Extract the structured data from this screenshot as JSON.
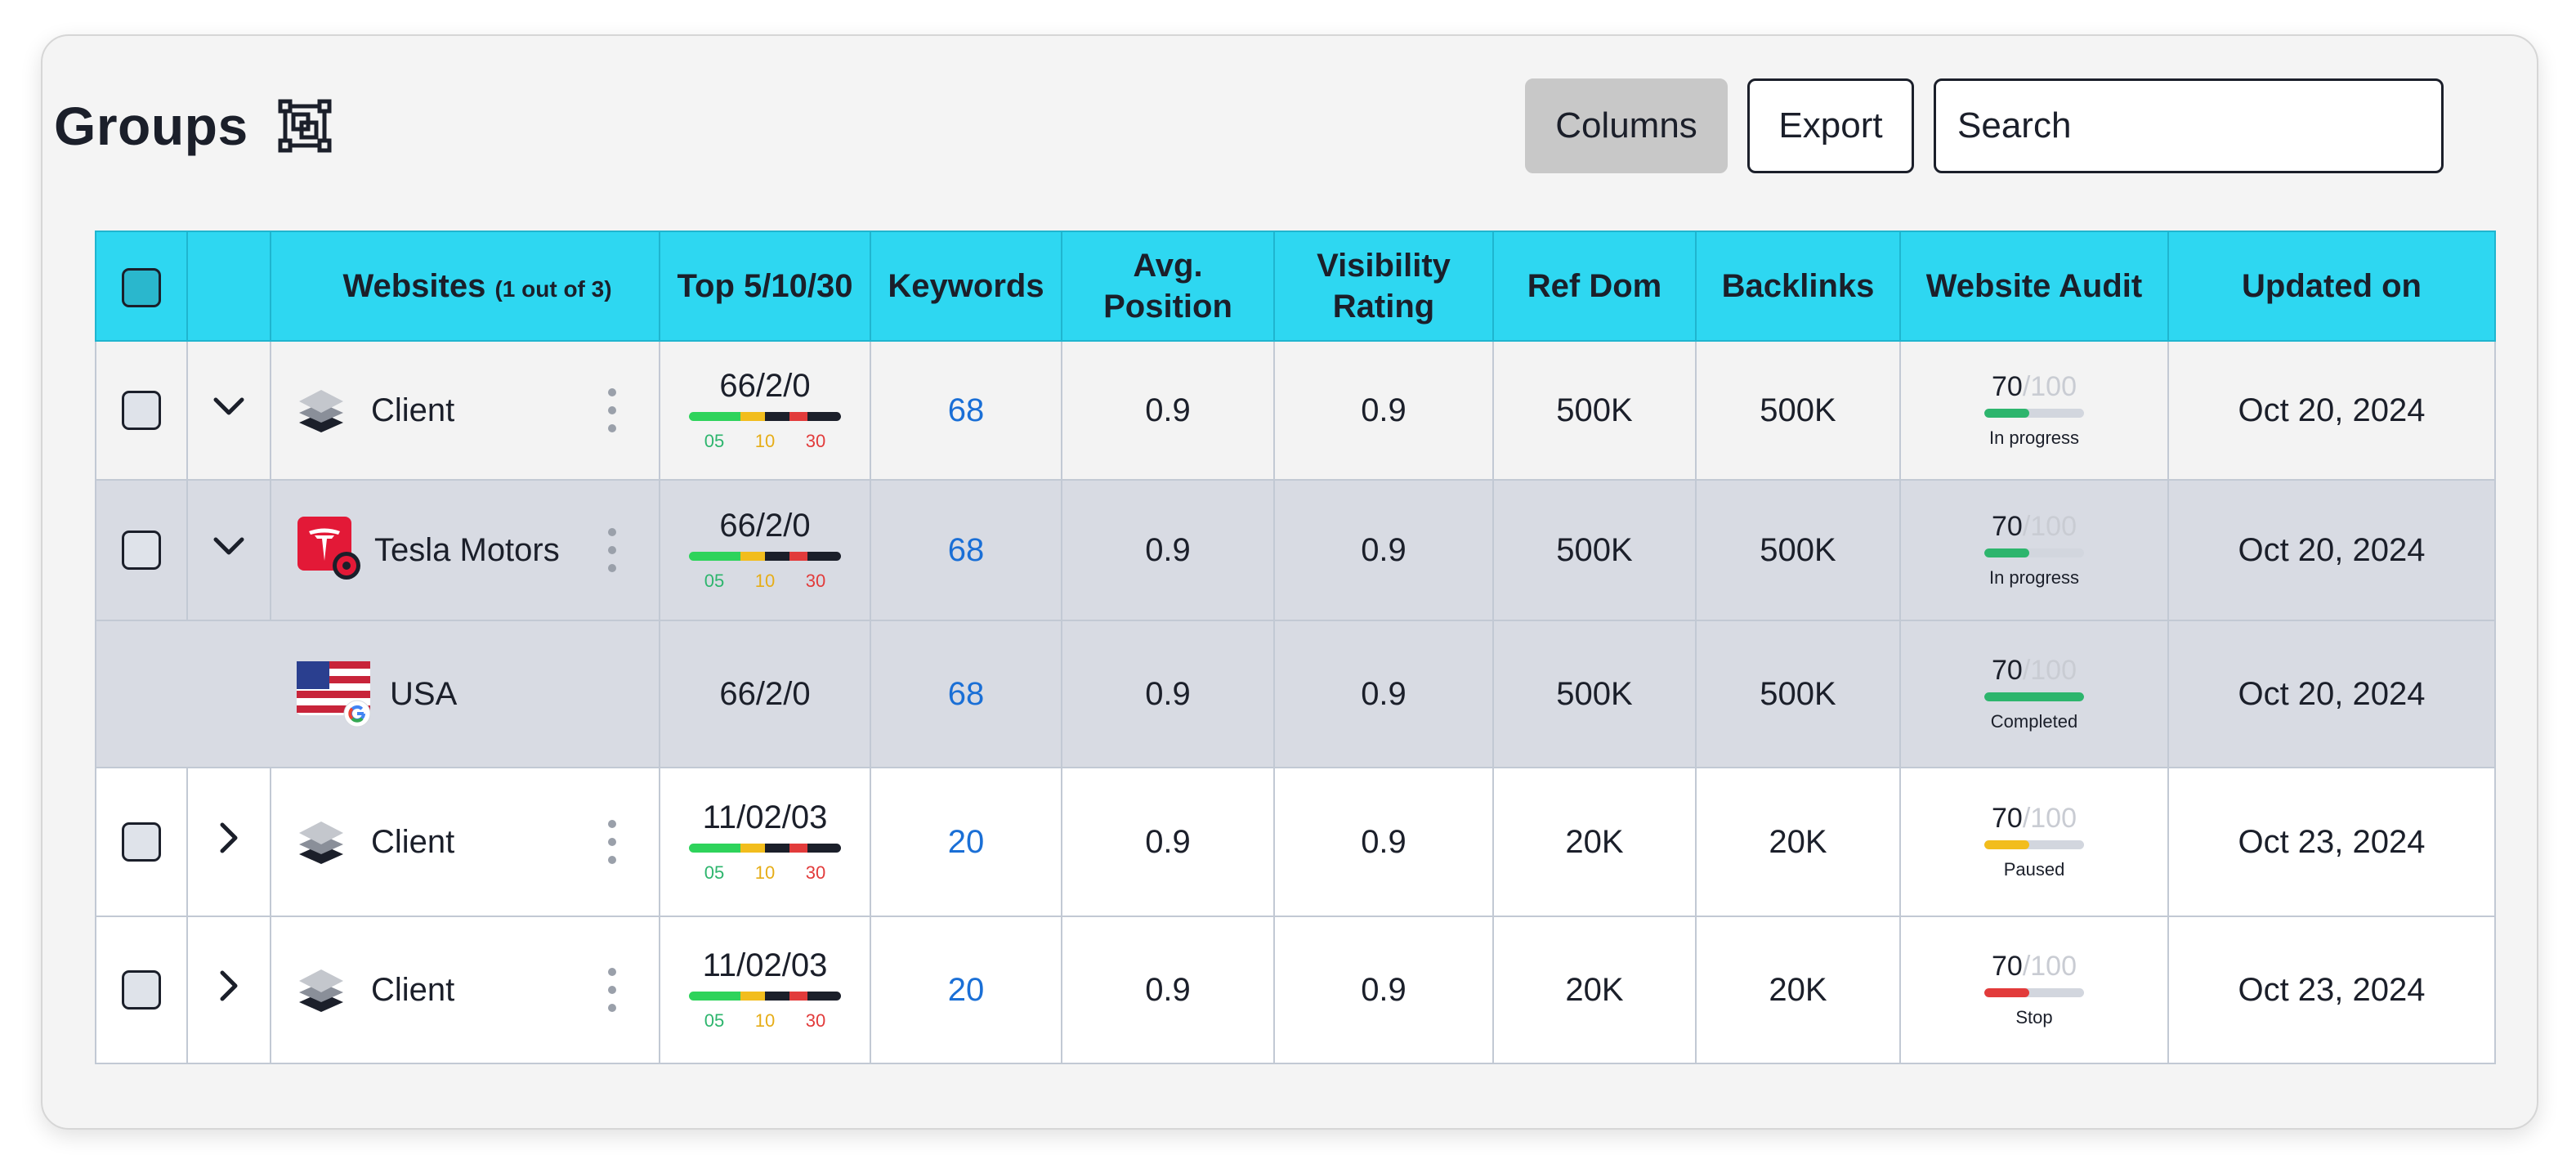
{
  "page": {
    "title": "Groups",
    "buttons": {
      "columns": "Columns",
      "export": "Export"
    },
    "search": {
      "placeholder": "Search",
      "value": ""
    }
  },
  "table": {
    "headers": {
      "websites": "Websites",
      "websites_count": "(1 out of 3)",
      "top": "Top 5/10/30",
      "keywords": "Keywords",
      "avg_position_1": "Avg.",
      "avg_position_2": "Position",
      "visibility_1": "Visibility",
      "visibility_2": "Rating",
      "ref_dom": "Ref Dom",
      "backlinks": "Backlinks",
      "website_audit": "Website Audit",
      "updated_on": "Updated on"
    },
    "top_bar_labels": [
      "05",
      "10",
      "30"
    ],
    "audit_max": "/100",
    "rows": [
      {
        "name": "Client",
        "icon": "layers-icon",
        "expanded": true,
        "top": "66/2/0",
        "keywords": "68",
        "avg_position": "0.9",
        "visibility": "0.9",
        "ref_dom": "500K",
        "backlinks": "500K",
        "audit_score": "70",
        "audit_status": "In progress",
        "audit_progress": 0.45,
        "audit_color": "#2db56d",
        "updated": "Oct 20, 2024"
      },
      {
        "name": "Tesla Motors",
        "icon": "tesla-logo-icon",
        "expanded": true,
        "top": "66/2/0",
        "keywords": "68",
        "avg_position": "0.9",
        "visibility": "0.9",
        "ref_dom": "500K",
        "backlinks": "500K",
        "audit_score": "70",
        "audit_status": "In progress",
        "audit_progress": 0.45,
        "audit_color": "#2db56d",
        "updated": "Oct 20, 2024"
      },
      {
        "name": "USA",
        "icon": "usa-flag-icon",
        "top": "66/2/0",
        "keywords": "68",
        "avg_position": "0.9",
        "visibility": "0.9",
        "ref_dom": "500K",
        "backlinks": "500K",
        "audit_score": "70",
        "audit_status": "Completed",
        "audit_progress": 1.0,
        "audit_color": "#2db56d",
        "updated": "Oct 20, 2024"
      },
      {
        "name": "Client",
        "icon": "layers-icon",
        "expanded": false,
        "top": "11/02/03",
        "keywords": "20",
        "avg_position": "0.9",
        "visibility": "0.9",
        "ref_dom": "20K",
        "backlinks": "20K",
        "audit_score": "70",
        "audit_status": "Paused",
        "audit_progress": 0.45,
        "audit_color": "#f2bd1d",
        "updated": "Oct 23, 2024"
      },
      {
        "name": "Client",
        "icon": "layers-icon",
        "expanded": false,
        "top": "11/02/03",
        "keywords": "20",
        "avg_position": "0.9",
        "visibility": "0.9",
        "ref_dom": "20K",
        "backlinks": "20K",
        "audit_score": "70",
        "audit_status": "Stop",
        "audit_progress": 0.45,
        "audit_color": "#e23b3b",
        "updated": "Oct 23, 2024"
      }
    ]
  },
  "colors": {
    "header_bg": "#2ed7f1",
    "link_blue": "#1a6fd6",
    "bar_green": "#2db56d",
    "bar_yellow": "#f2bd1d",
    "bar_red": "#e23b3b",
    "bar_dark": "#1b1f2a"
  }
}
